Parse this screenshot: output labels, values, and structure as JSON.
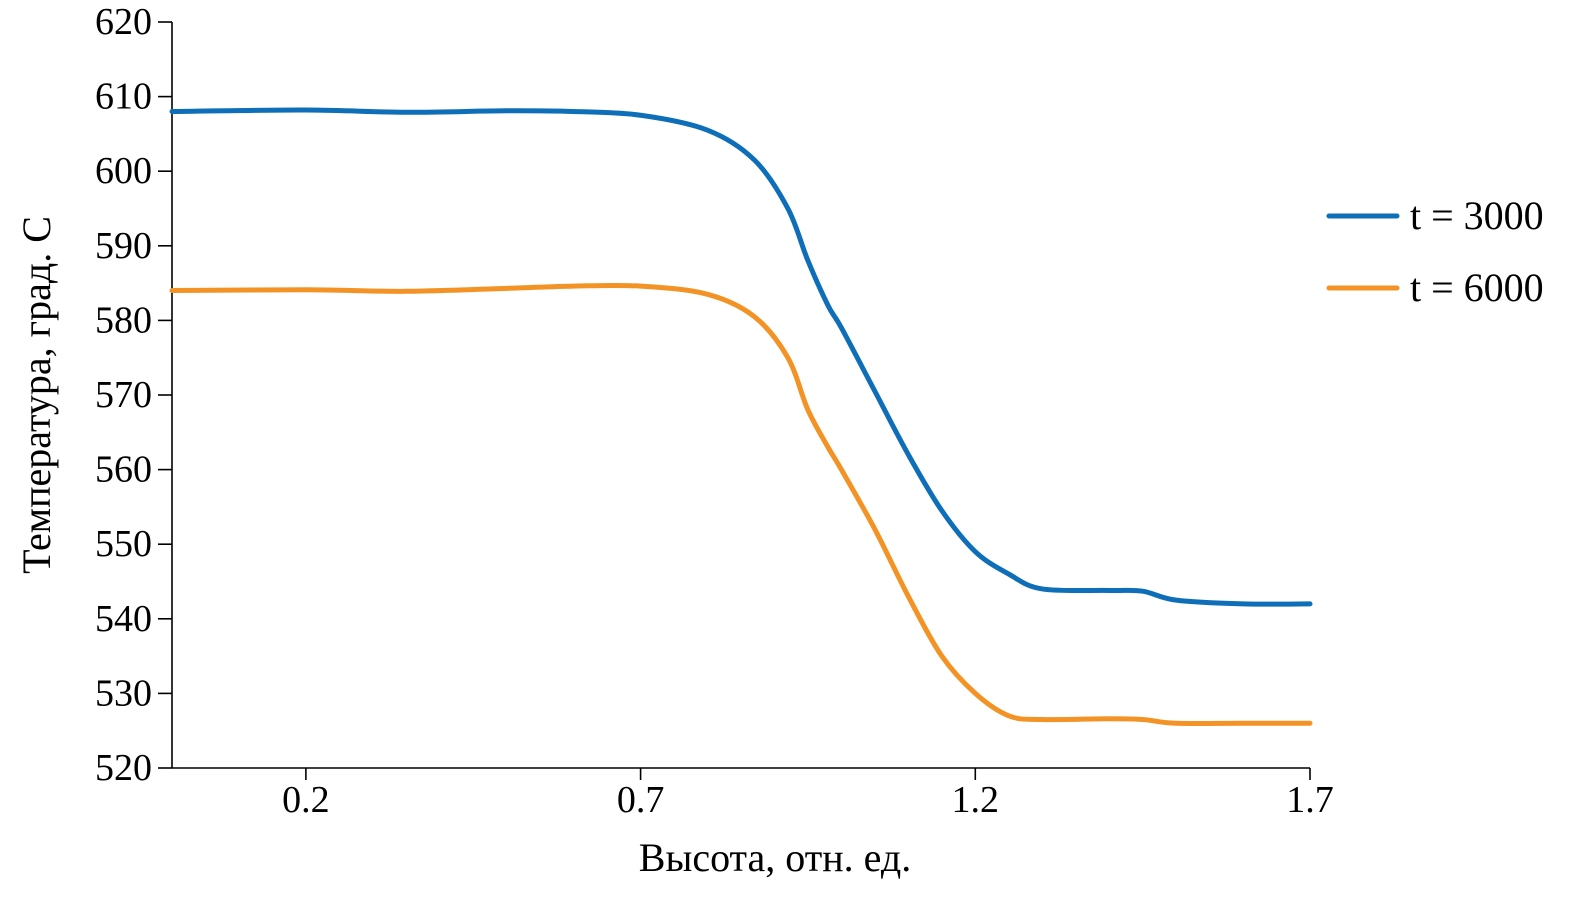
{
  "chart_data": {
    "type": "line",
    "title": "",
    "xlabel": "Высота, отн. ед.",
    "ylabel": "Температура, град. С",
    "xlim": [
      0.0,
      1.7
    ],
    "ylim": [
      520,
      620
    ],
    "x_ticks": [
      0.2,
      0.7,
      1.2,
      1.7
    ],
    "x_tick_labels": [
      "0.2",
      "0.7",
      "1.2",
      "1.7"
    ],
    "y_ticks": [
      520,
      530,
      540,
      550,
      560,
      570,
      580,
      590,
      600,
      610,
      620
    ],
    "y_tick_labels": [
      "520",
      "530",
      "540",
      "550",
      "560",
      "570",
      "580",
      "590",
      "600",
      "610",
      "620"
    ],
    "grid": false,
    "legend_position": "right",
    "series": [
      {
        "name": "t = 3000",
        "color": "#0e6eb8",
        "x": [
          0.0,
          0.2,
          0.35,
          0.5,
          0.6,
          0.7,
          0.8,
          0.87,
          0.92,
          0.95,
          0.98,
          1.0,
          1.05,
          1.1,
          1.15,
          1.2,
          1.25,
          1.3,
          1.4,
          1.45,
          1.5,
          1.6,
          1.7
        ],
        "values": [
          608,
          608.2,
          607.9,
          608.1,
          608.0,
          607.5,
          605.5,
          601.5,
          595,
          588,
          582,
          579,
          570.5,
          562,
          554.5,
          549,
          546,
          544,
          543.8,
          543.7,
          542.5,
          542,
          542
        ]
      },
      {
        "name": "t = 6000",
        "color": "#f39325",
        "x": [
          0.0,
          0.2,
          0.35,
          0.5,
          0.6,
          0.7,
          0.8,
          0.87,
          0.92,
          0.95,
          0.98,
          1.0,
          1.05,
          1.1,
          1.15,
          1.2,
          1.25,
          1.3,
          1.4,
          1.45,
          1.5,
          1.6,
          1.7
        ],
        "values": [
          584,
          584.1,
          583.9,
          584.3,
          584.6,
          584.6,
          583.5,
          580.5,
          575,
          568,
          563,
          560,
          552,
          543,
          535,
          530,
          527,
          526.5,
          526.6,
          526.5,
          526,
          526,
          526
        ]
      }
    ]
  }
}
